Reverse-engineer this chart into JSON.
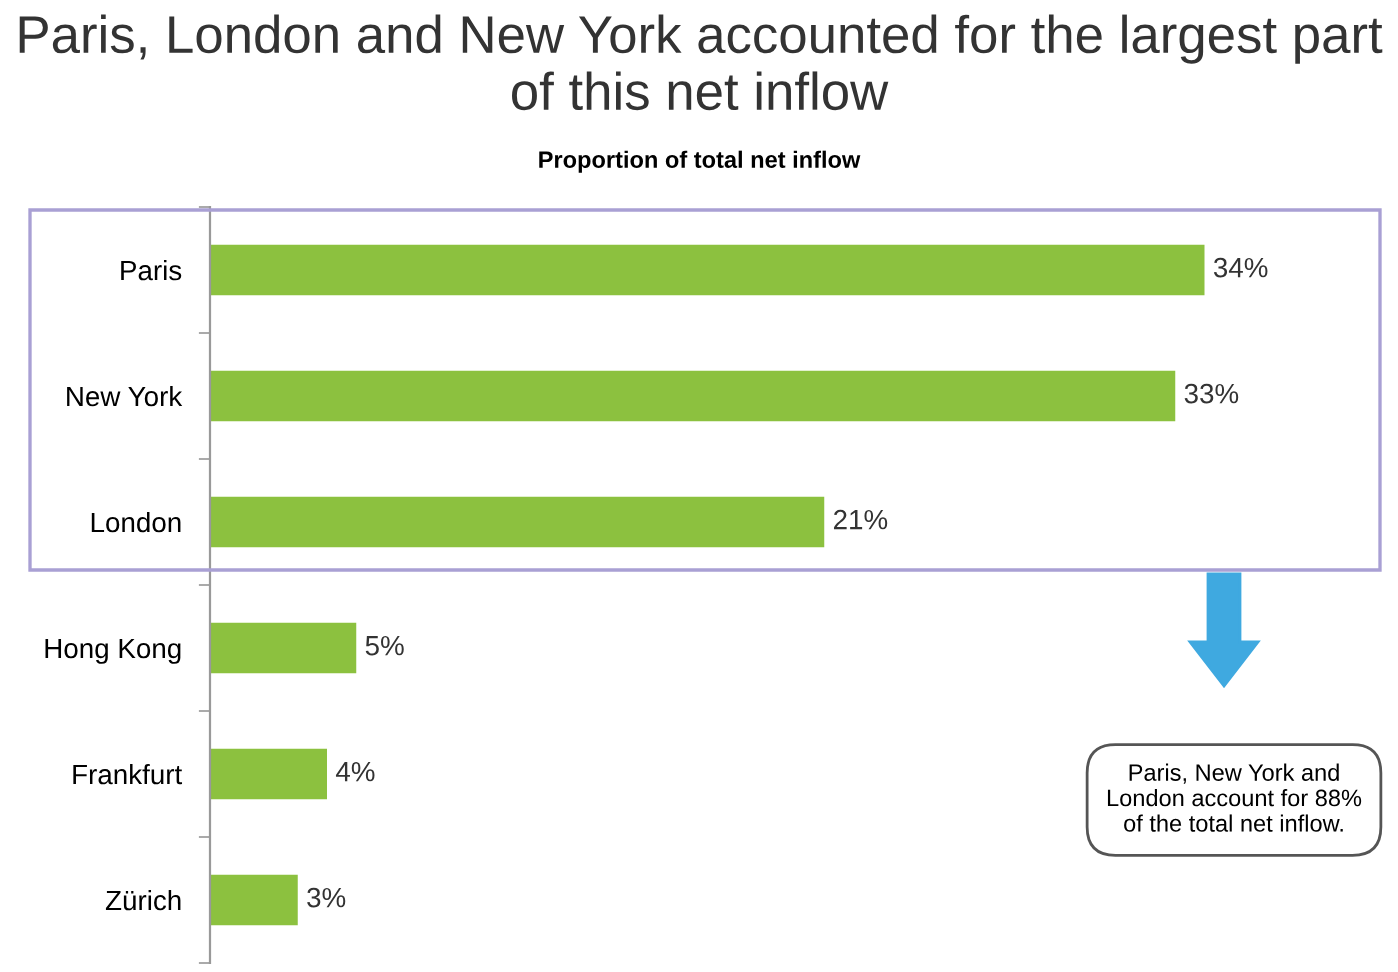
{
  "chart_data": {
    "type": "bar",
    "orientation": "horizontal",
    "title": "Paris, London and New York accounted for the largest part of this net inflow",
    "subtitle": "Proportion of total net inflow",
    "categories": [
      "Paris",
      "New York",
      "London",
      "Hong Kong",
      "Frankfurt",
      "Zürich"
    ],
    "values": [
      34,
      33,
      21,
      5,
      4,
      3
    ],
    "value_labels": [
      "34%",
      "33%",
      "21%",
      "5%",
      "4%",
      "3%"
    ],
    "color": "#8cc13f",
    "xlim": [
      0,
      40
    ],
    "tick_labels": "y",
    "annotations": [
      "Paris, New York and London account for 88% of the total net inflow."
    ]
  }
}
